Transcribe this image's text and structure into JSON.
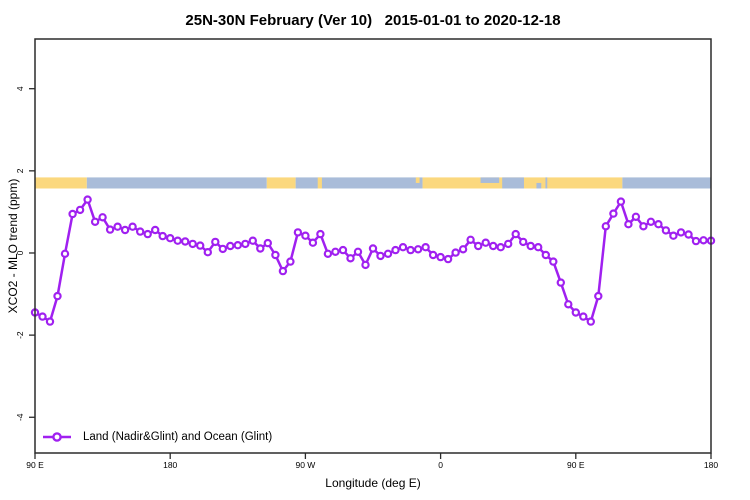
{
  "chart_data": {
    "type": "line",
    "title": "25N-30N February (Ver 10)   2015-01-01 to 2020-12-18",
    "xlabel": "Longitude (deg E)",
    "ylabel": "XCO2 - MLO trend (ppm)",
    "legend_label": "Land (Nadir&Glint) and Ocean (Glint)",
    "series_color": "#A020F0",
    "marker": "open-circle",
    "xlim": [
      90,
      540
    ],
    "ylim": [
      -4.87,
      5.21
    ],
    "x_ticks": [
      {
        "lon": 90,
        "label": "90 E"
      },
      {
        "lon": 180,
        "label": "180"
      },
      {
        "lon": 270,
        "label": "90 W"
      },
      {
        "lon": 360,
        "label": "0"
      },
      {
        "lon": 450,
        "label": "90 E"
      },
      {
        "lon": 540,
        "label": "180"
      }
    ],
    "y_ticks": [
      {
        "v": -4,
        "label": "-4"
      },
      {
        "v": -2,
        "label": "-2"
      },
      {
        "v": 0,
        "label": "0"
      },
      {
        "v": 2,
        "label": "2"
      },
      {
        "v": 4,
        "label": "4"
      }
    ],
    "x_step_deg": 5,
    "x": [
      90,
      95,
      100,
      105,
      110,
      115,
      120,
      125,
      130,
      135,
      140,
      145,
      150,
      155,
      160,
      165,
      170,
      175,
      180,
      185,
      190,
      195,
      200,
      205,
      210,
      215,
      220,
      225,
      230,
      235,
      240,
      245,
      250,
      255,
      260,
      265,
      270,
      275,
      280,
      285,
      290,
      295,
      300,
      305,
      310,
      315,
      320,
      325,
      330,
      335,
      340,
      345,
      350,
      355,
      360,
      365,
      370,
      375,
      380,
      385,
      390,
      395,
      400,
      405,
      410,
      415,
      420,
      425,
      430,
      435,
      440,
      445,
      450,
      455,
      460,
      465,
      470,
      475,
      480,
      485,
      490,
      495,
      500,
      505,
      510,
      515,
      520,
      525,
      530,
      535,
      540
    ],
    "values": [
      -1.45,
      -1.55,
      -1.67,
      -1.05,
      -0.02,
      0.95,
      1.05,
      1.3,
      0.76,
      0.87,
      0.57,
      0.64,
      0.56,
      0.64,
      0.52,
      0.46,
      0.56,
      0.41,
      0.36,
      0.3,
      0.28,
      0.22,
      0.18,
      0.02,
      0.27,
      0.1,
      0.17,
      0.19,
      0.22,
      0.3,
      0.11,
      0.24,
      -0.05,
      -0.44,
      -0.21,
      0.5,
      0.42,
      0.25,
      0.46,
      -0.02,
      0.03,
      0.07,
      -0.13,
      0.03,
      -0.29,
      0.11,
      -0.07,
      -0.02,
      0.07,
      0.14,
      0.07,
      0.09,
      0.14,
      -0.05,
      -0.1,
      -0.15,
      0.01,
      0.09,
      0.32,
      0.17,
      0.25,
      0.17,
      0.14,
      0.22,
      0.46,
      0.27,
      0.17,
      0.14,
      -0.05,
      -0.21,
      -0.72,
      -1.25,
      -1.45,
      -1.55,
      -1.67,
      -1.05,
      0.65,
      0.96,
      1.25,
      0.7,
      0.88,
      0.65,
      0.76,
      0.7,
      0.55,
      0.42,
      0.5,
      0.45,
      0.29,
      0.31,
      0.3
    ],
    "land_ocean_band": {
      "description": "horizontal land/ocean strip",
      "y_range": [
        1.57,
        1.84
      ],
      "land_color": "#FBD87E",
      "ocean_color": "#A9BCD9",
      "segments": [
        {
          "from": 90,
          "to": 124.5,
          "type": "land"
        },
        {
          "from": 124.5,
          "to": 244.3,
          "type": "ocean"
        },
        {
          "from": 244.3,
          "to": 263.5,
          "type": "land"
        },
        {
          "from": 263.5,
          "to": 348,
          "type": "ocean"
        },
        {
          "from": 348,
          "to": 481,
          "type": "land"
        },
        {
          "from": 481,
          "to": 540,
          "type": "ocean"
        }
      ],
      "patches": [
        {
          "from": 278.2,
          "to": 281,
          "type": "land",
          "half": "full"
        },
        {
          "from": 343.5,
          "to": 346,
          "type": "land",
          "half": "top"
        },
        {
          "from": 386.6,
          "to": 399,
          "type": "ocean",
          "half": "top"
        },
        {
          "from": 401,
          "to": 415.5,
          "type": "ocean",
          "half": "full"
        },
        {
          "from": 423.8,
          "to": 427,
          "type": "ocean",
          "half": "bottom"
        },
        {
          "from": 429.8,
          "to": 431,
          "type": "ocean",
          "half": "full"
        }
      ]
    },
    "grid": false,
    "legend_position": "bottom-left-inside"
  }
}
